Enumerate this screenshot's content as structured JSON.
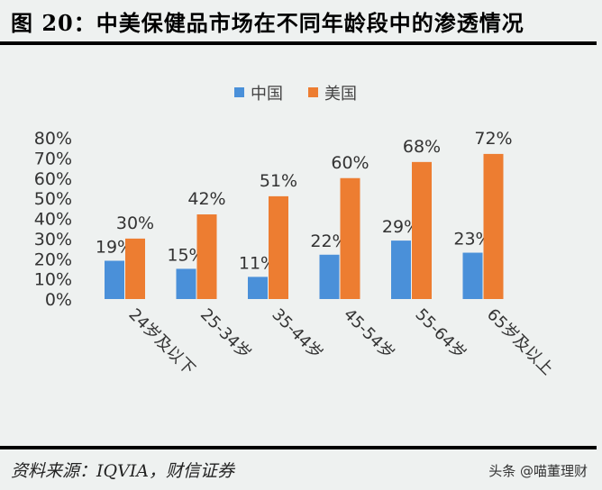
{
  "header": {
    "title": "图 20：中美保健品市场在不同年龄段中的渗透情况"
  },
  "footer": {
    "source": "资料来源：IQVIA，财信证券",
    "watermark": "头条 @喵董理财"
  },
  "chart_data": {
    "type": "bar",
    "title": "",
    "categories": [
      "24岁及以下",
      "25-34岁",
      "35-44岁",
      "45-54岁",
      "55-64岁",
      "65岁及以上"
    ],
    "series": [
      {
        "name": "中国",
        "values": [
          19,
          15,
          11,
          22,
          29,
          23
        ],
        "color": "#4a90d9"
      },
      {
        "name": "美国",
        "values": [
          30,
          42,
          51,
          60,
          68,
          72
        ],
        "color": "#ed7d31"
      }
    ],
    "ylim": [
      0,
      80
    ],
    "yticks": [
      "0%",
      "10%",
      "20%",
      "30%",
      "40%",
      "50%",
      "60%",
      "70%",
      "80%"
    ],
    "legend": "top",
    "grid": false
  }
}
